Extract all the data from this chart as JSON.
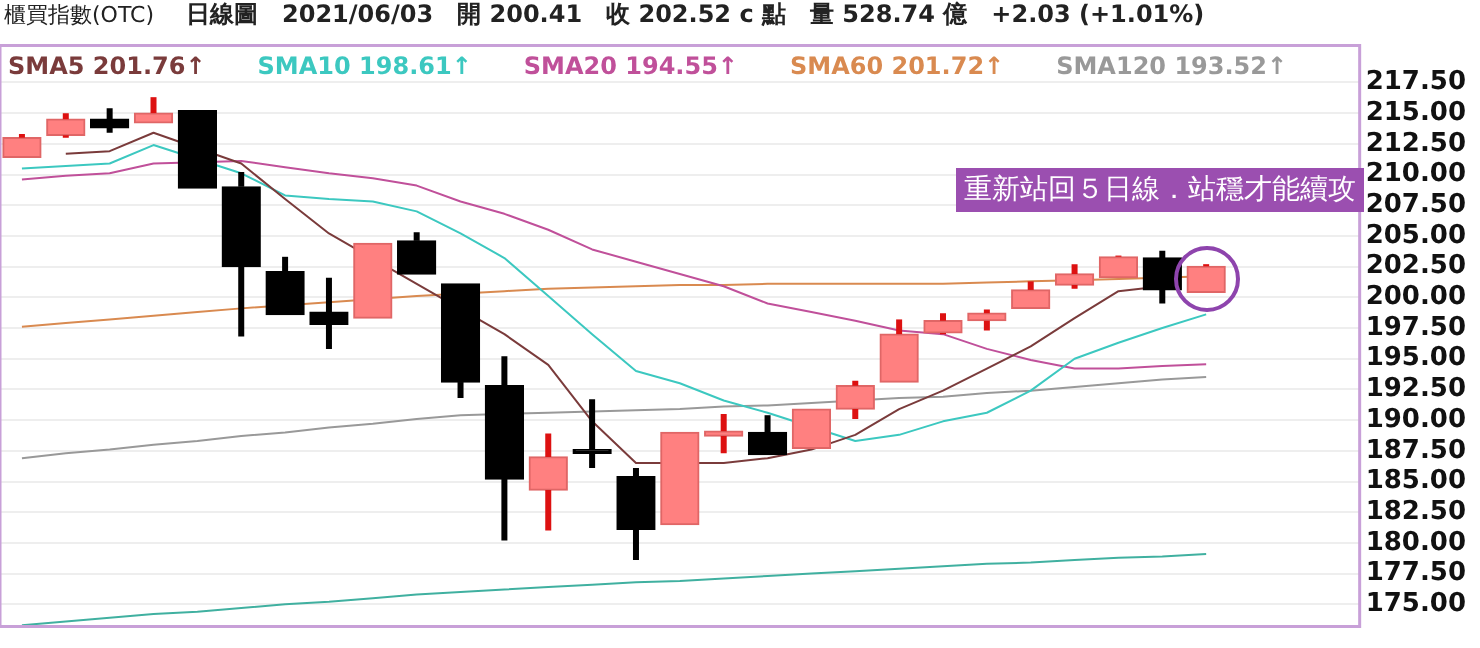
{
  "chart_data": {
    "type": "candlestick",
    "title": "櫃買指數(OTC)",
    "subtitle": "日線圖　2021/06/03　開 200.41　收 202.52 c 點　量 528.74 億　+2.03 (+1.01%)",
    "categories": [
      null,
      null,
      null,
      null,
      null,
      null,
      null,
      null,
      null,
      null,
      null,
      null,
      null,
      null,
      null,
      null,
      null,
      null,
      null,
      null,
      null,
      null,
      null,
      null,
      null,
      null,
      null,
      null,
      null,
      null,
      null
    ],
    "ohlc": [
      [
        211.4,
        213.3,
        211.4,
        213.0
      ],
      [
        213.2,
        215.0,
        213.0,
        214.5
      ],
      [
        214.5,
        215.4,
        213.4,
        213.8
      ],
      [
        214.2,
        216.3,
        214.2,
        215.0
      ],
      [
        215.2,
        215.2,
        208.9,
        208.9
      ],
      [
        209.0,
        210.2,
        196.8,
        202.5
      ],
      [
        202.1,
        203.3,
        198.6,
        198.6
      ],
      [
        198.8,
        201.6,
        195.8,
        197.8
      ],
      [
        198.3,
        204.4,
        198.3,
        204.4
      ],
      [
        204.6,
        205.3,
        201.9,
        201.9
      ],
      [
        201.1,
        201.1,
        191.8,
        193.1
      ],
      [
        192.8,
        195.2,
        180.2,
        185.2
      ],
      [
        184.3,
        188.9,
        181.0,
        187.0
      ],
      [
        187.6,
        191.7,
        186.1,
        187.3
      ],
      [
        185.4,
        186.1,
        178.6,
        181.1
      ],
      [
        181.5,
        189.0,
        181.5,
        189.0
      ],
      [
        188.7,
        190.5,
        187.3,
        189.1
      ],
      [
        189.0,
        190.4,
        187.2,
        187.2
      ],
      [
        187.7,
        190.9,
        187.7,
        190.9
      ],
      [
        190.9,
        193.2,
        190.1,
        192.8
      ],
      [
        193.1,
        198.2,
        193.1,
        197.0
      ],
      [
        197.1,
        198.7,
        197.0,
        198.1
      ],
      [
        198.1,
        199.0,
        197.3,
        198.7
      ],
      [
        199.1,
        201.3,
        199.1,
        200.6
      ],
      [
        201.0,
        202.7,
        200.7,
        201.9
      ],
      [
        201.6,
        203.4,
        201.6,
        203.3
      ],
      [
        203.2,
        203.8,
        199.5,
        200.6
      ],
      [
        200.41,
        202.7,
        200.41,
        202.52
      ],
      null,
      null,
      null
    ],
    "series": [
      {
        "type": "line",
        "name": "SMA5 201.76↑",
        "color": "#7a3b3b",
        "values": [
          null,
          211.7,
          211.9,
          213.4,
          null,
          210.9,
          208.0,
          205.2,
          null,
          201.1,
          null,
          197.0,
          194.5,
          189.9,
          186.5,
          null,
          186.5,
          186.9,
          187.6,
          188.8,
          190.9,
          192.4,
          194.2,
          196.0,
          198.3,
          200.5,
          200.9,
          null,
          null,
          null,
          null
        ]
      },
      {
        "type": "line",
        "name": "SMA10 198.61↑",
        "color": "#3cc8c0",
        "values": [
          210.5,
          210.7,
          210.9,
          212.4,
          null,
          210.1,
          208.3,
          208.0,
          207.8,
          207.0,
          205.2,
          203.2,
          200.1,
          197.0,
          194.0,
          193.0,
          191.6,
          190.6,
          null,
          188.3,
          188.8,
          189.9,
          190.6,
          192.4,
          195.0,
          196.3,
          197.5,
          198.61,
          null,
          null,
          null
        ]
      },
      {
        "type": "line",
        "name": "SMA20 194.55↑",
        "color": "#c0509a",
        "values": [
          209.6,
          209.9,
          210.1,
          210.9,
          null,
          211.1,
          210.6,
          210.1,
          209.7,
          209.1,
          207.8,
          206.8,
          205.5,
          203.9,
          202.9,
          201.9,
          200.9,
          199.5,
          198.8,
          198.1,
          197.3,
          197.0,
          195.8,
          194.9,
          194.2,
          194.2,
          194.4,
          194.55,
          null,
          null,
          null
        ]
      },
      {
        "type": "line",
        "name": "SMA60 201.72↑",
        "color": "#d98a50",
        "values": [
          197.6,
          197.9,
          198.2,
          198.5,
          198.8,
          199.1,
          null,
          199.6,
          null,
          200.1,
          null,
          200.5,
          200.7,
          200.8,
          200.9,
          201.0,
          201.0,
          201.1,
          201.1,
          201.1,
          201.1,
          201.1,
          201.2,
          201.3,
          201.4,
          201.5,
          null,
          201.72,
          null,
          null,
          null
        ]
      },
      {
        "type": "line",
        "name": "SMA120 193.52↑",
        "color": "#999999",
        "values": [
          186.9,
          187.3,
          187.6,
          188.0,
          188.3,
          188.7,
          189.0,
          189.4,
          189.7,
          190.1,
          190.4,
          null,
          190.6,
          190.7,
          190.8,
          190.9,
          191.1,
          191.2,
          191.4,
          null,
          191.8,
          191.9,
          192.2,
          192.4,
          192.7,
          193.0,
          193.3,
          193.52,
          null,
          null,
          null
        ]
      },
      {
        "type": "line",
        "color": "#40b0a0",
        "values": [
          173.3,
          173.6,
          173.9,
          174.2,
          174.4,
          174.7,
          175.0,
          175.2,
          175.5,
          175.8,
          176.0,
          176.2,
          176.4,
          176.6,
          176.8,
          176.9,
          177.1,
          177.3,
          177.5,
          177.7,
          177.9,
          178.1,
          178.3,
          178.4,
          178.6,
          178.8,
          178.9,
          179.1,
          null,
          null,
          null
        ]
      }
    ],
    "ylim": [
      173.2,
      220.5
    ],
    "yticks": [
      {
        "value": 175,
        "label": "175.00"
      },
      {
        "value": 177.5,
        "label": "177.50"
      },
      {
        "value": 180,
        "label": "180.00"
      },
      {
        "value": 182.5,
        "label": "182.50"
      },
      {
        "value": 185,
        "label": "185.00"
      },
      {
        "value": 187.5,
        "label": "187.50"
      },
      {
        "value": 190,
        "label": "190.00"
      },
      {
        "value": 192.5,
        "label": "192.50"
      },
      {
        "value": 195,
        "label": "195.00"
      },
      {
        "value": 197.5,
        "label": "197.50"
      },
      {
        "value": 200,
        "label": "200.00"
      },
      {
        "value": 202.5,
        "label": "202.50"
      },
      {
        "value": 205,
        "label": "205.00"
      },
      {
        "value": 207.5,
        "label": "207.50"
      },
      {
        "value": 210,
        "label": "210.00"
      },
      {
        "value": 212.5,
        "label": "212.50"
      },
      {
        "value": 215,
        "label": "215.00"
      },
      {
        "value": 217.5,
        "label": "217.50"
      }
    ],
    "grid": "y",
    "legend": "top left",
    "tick_labels": "y",
    "marker": "none",
    "annotations": [
      "重新站回５日線．站穩才能續攻"
    ]
  }
}
